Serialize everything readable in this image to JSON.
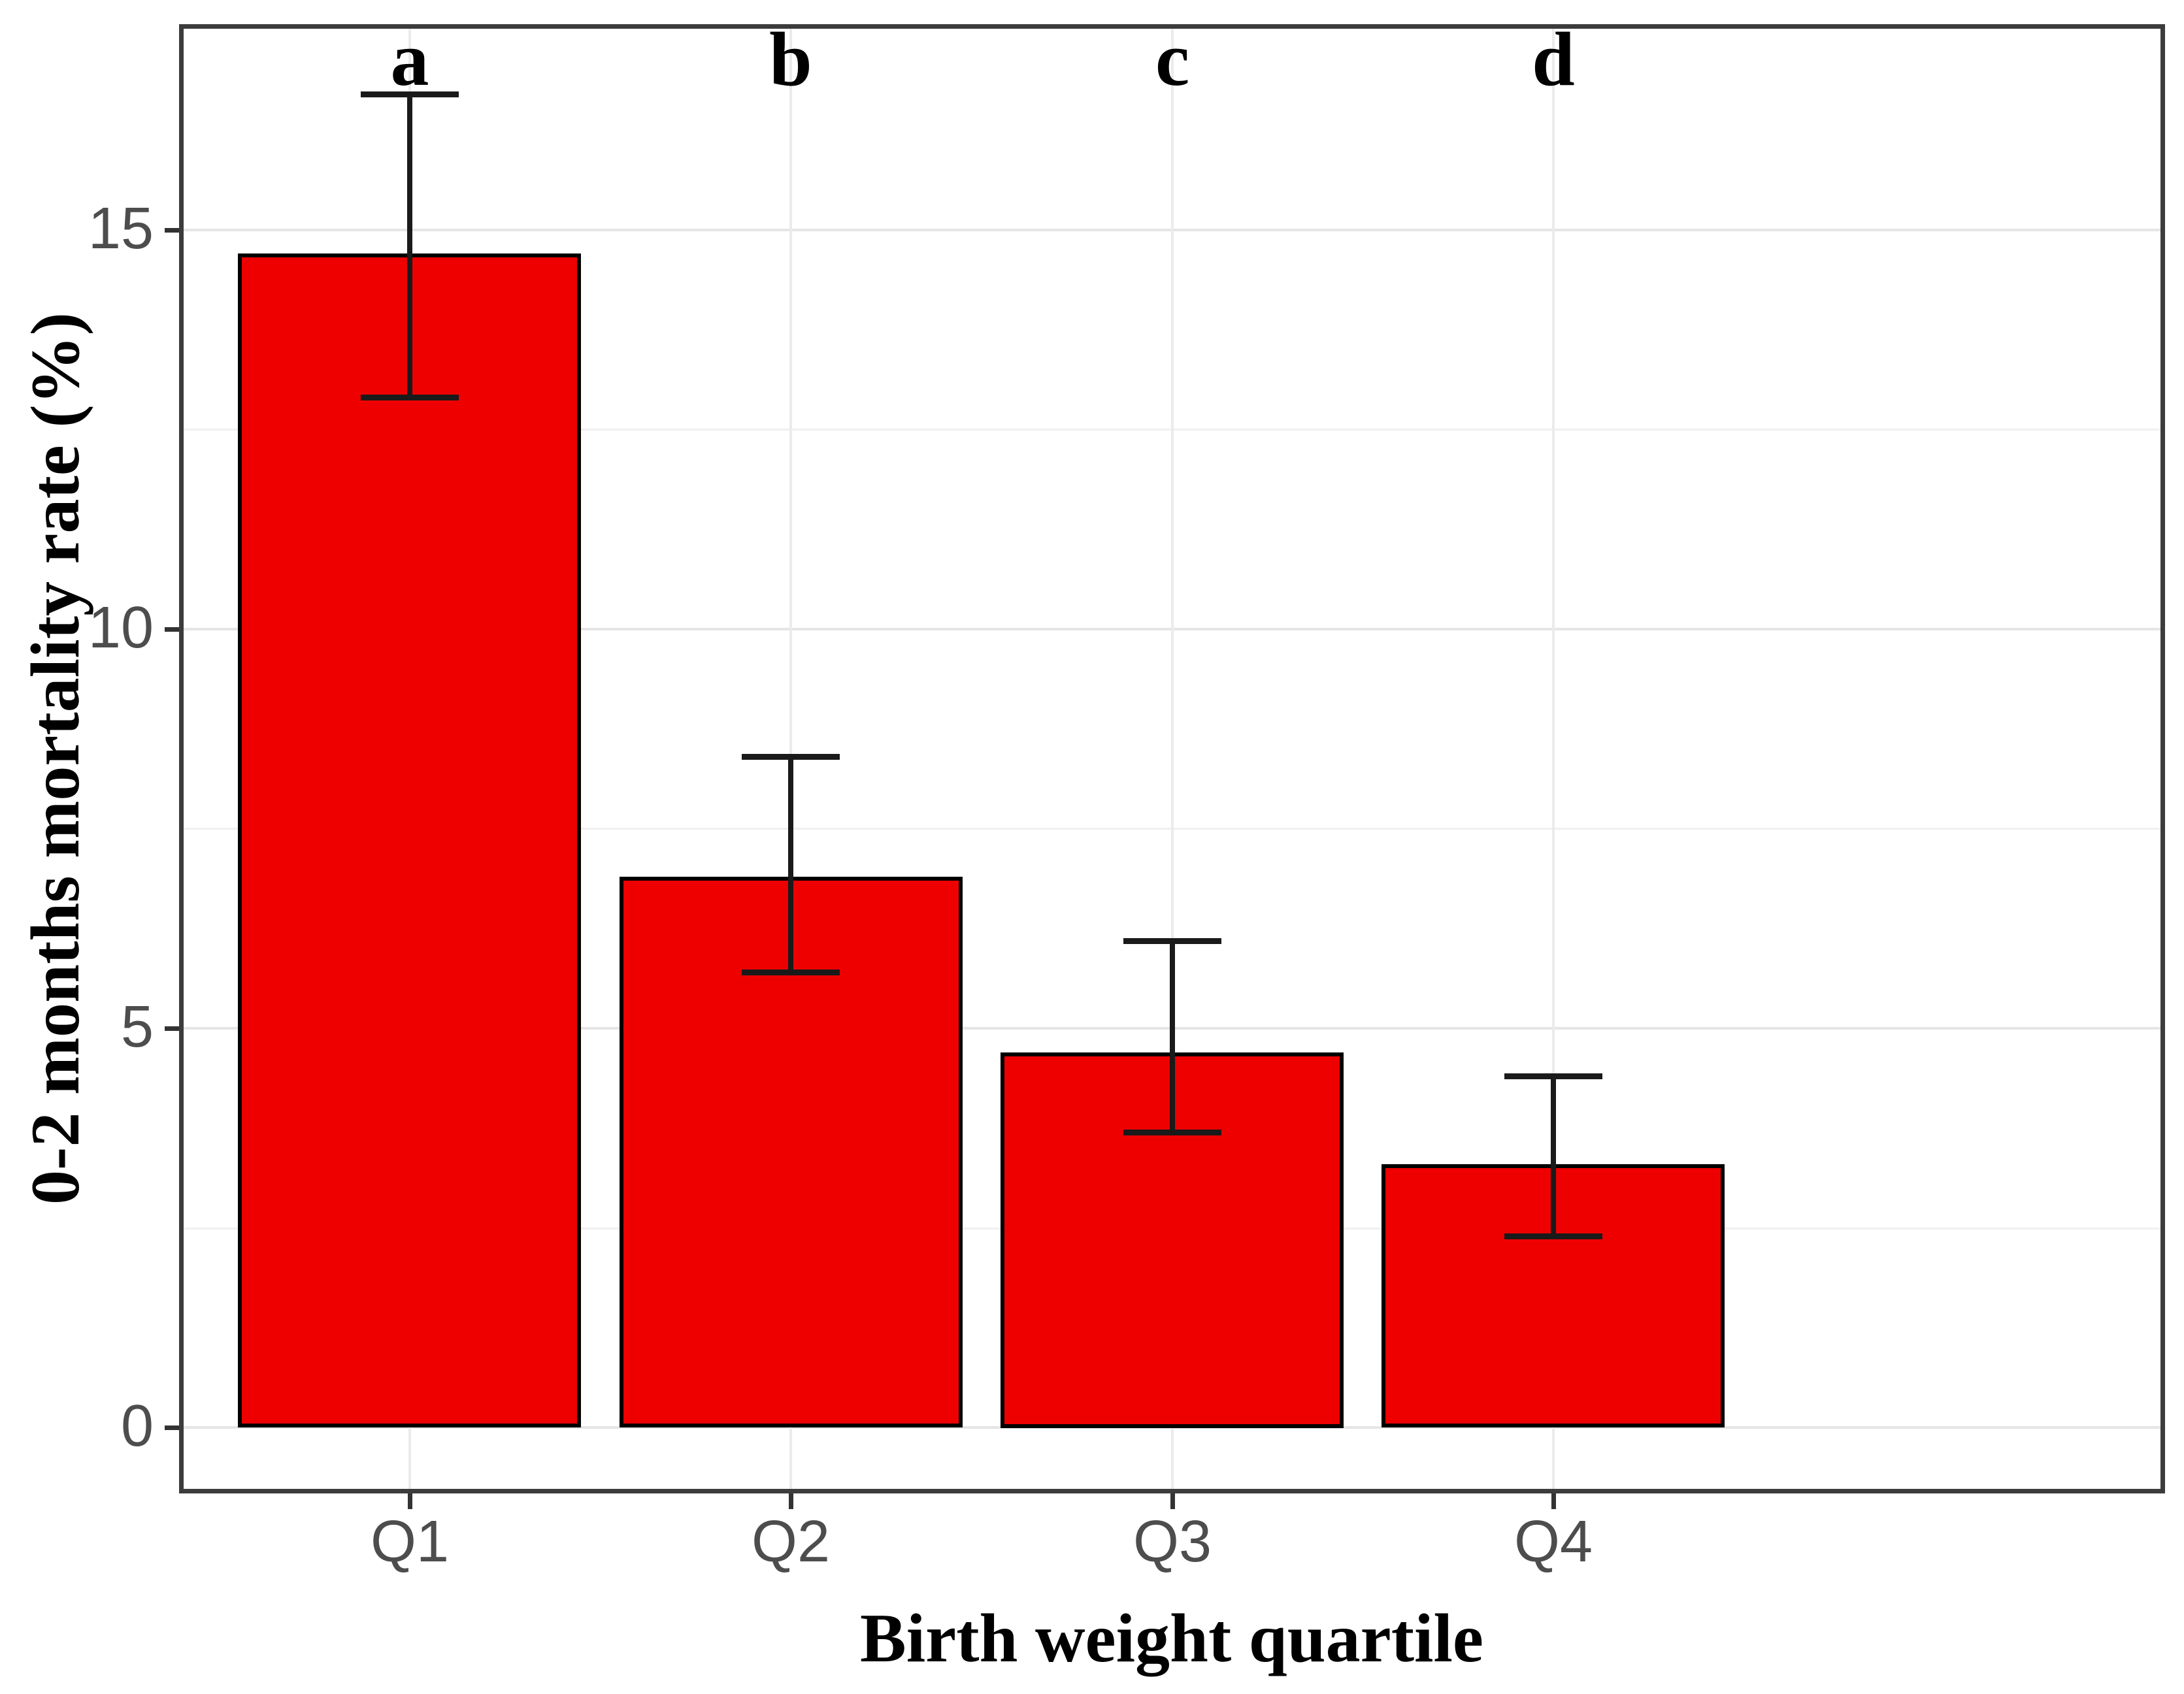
{
  "figure": {
    "background_color": "#ffffff",
    "panel_border_color": "#3c3c3c",
    "grid_major_color": "#e5e5e5",
    "grid_minor_color": "#f0f0f0",
    "grid_vertical_color": "#ebebeb",
    "tick_color": "#333333",
    "axis_text_color": "#4d4d4d",
    "axis_title_color": "#000000"
  },
  "chart_data": {
    "type": "bar",
    "title": "",
    "xlabel": "Birth weight quartile",
    "ylabel": "0-2 months mortality rate (%)",
    "categories": [
      "Q1",
      "Q2",
      "Q3",
      "Q4"
    ],
    "values": [
      14.7,
      6.9,
      4.7,
      3.3
    ],
    "error_low": [
      12.9,
      5.7,
      3.7,
      2.4
    ],
    "error_high": [
      16.7,
      8.4,
      6.1,
      4.4
    ],
    "sig_letters": [
      "a",
      "b",
      "c",
      "d"
    ],
    "bar_color": "#ee0000",
    "bar_border_color": "#000000",
    "errorbar_color": "#1a1a1a",
    "ylim": [
      -0.8,
      17.55
    ],
    "yticks": [
      0,
      5,
      10,
      15
    ],
    "yticks_minor": [
      2.5,
      7.5,
      12.5
    ],
    "grid": true,
    "legend": false
  }
}
